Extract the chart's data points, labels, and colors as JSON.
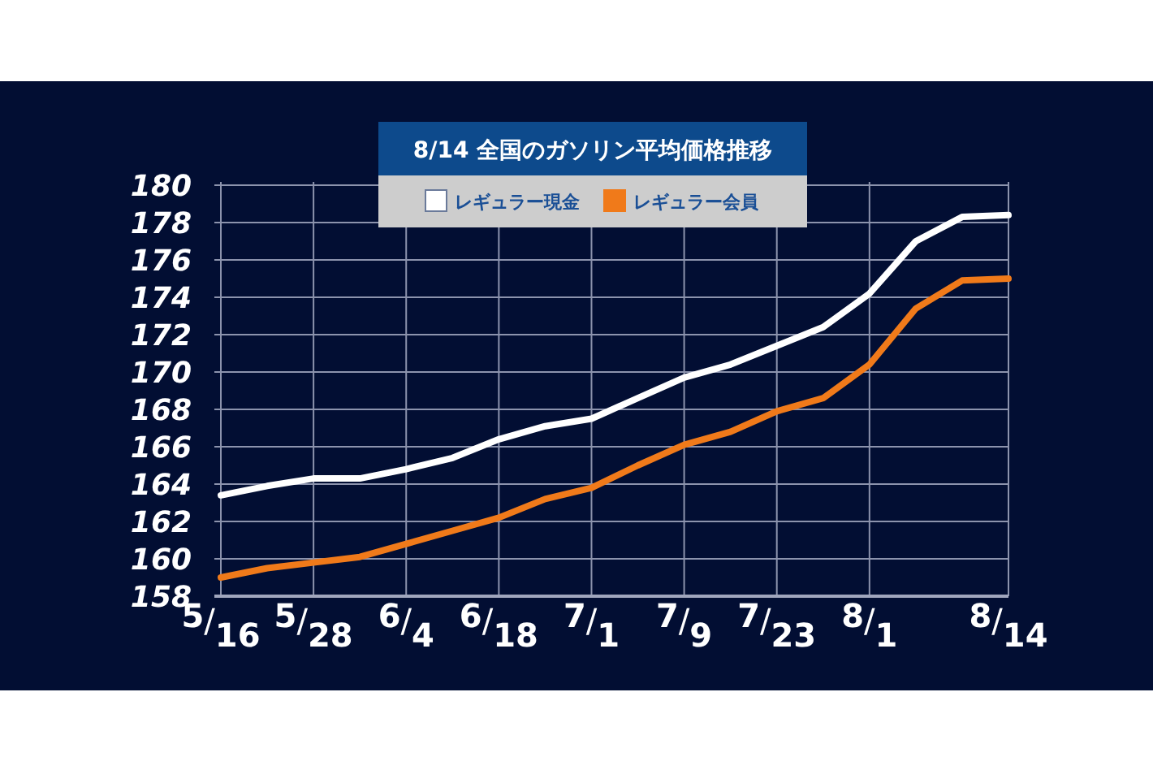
{
  "chart_data": {
    "type": "line",
    "title": "8/14 全国のガソリン平均価格推移",
    "categories": [
      "5/16",
      null,
      "5/28",
      null,
      "6/4",
      null,
      "6/18",
      null,
      "7/1",
      null,
      "7/9",
      null,
      "7/23",
      null,
      "8/1",
      null,
      null,
      "8/14"
    ],
    "series": [
      {
        "name": "レギュラー現金",
        "color": "#ffffff",
        "values": [
          163.4,
          163.9,
          164.3,
          164.3,
          164.8,
          165.4,
          166.4,
          167.1,
          167.5,
          168.6,
          169.7,
          170.4,
          171.4,
          172.4,
          174.2,
          177.0,
          178.3,
          178.4
        ]
      },
      {
        "name": "レギュラー会員",
        "color": "#f07a1a",
        "values": [
          159.0,
          159.5,
          159.8,
          160.1,
          160.8,
          161.5,
          162.2,
          163.2,
          163.8,
          165.0,
          166.1,
          166.8,
          167.9,
          168.6,
          170.4,
          173.4,
          174.9,
          175.0
        ]
      }
    ],
    "ylim": [
      158,
      180
    ],
    "yticks": [
      158,
      160,
      162,
      164,
      166,
      168,
      170,
      172,
      174,
      176,
      178,
      180
    ],
    "grid": true,
    "legend": "top",
    "marker": "none",
    "line_style": "solid"
  }
}
